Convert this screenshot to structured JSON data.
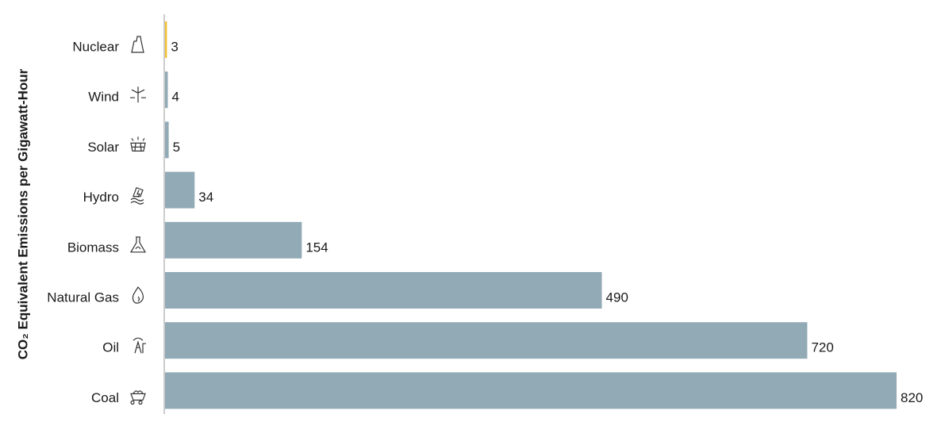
{
  "chart_data": {
    "type": "hbar",
    "y_label": "CO₂ Equivalent Emissions per Gigawatt-Hour",
    "categories": [
      "Nuclear",
      "Wind",
      "Solar",
      "Hydro",
      "Biomass",
      "Natural Gas",
      "Oil",
      "Coal"
    ],
    "values": [
      3,
      4,
      5,
      34,
      154,
      490,
      720,
      820
    ],
    "colors": [
      "#f2c12e",
      "#91aab6",
      "#91aab6",
      "#91aab6",
      "#91aab6",
      "#91aab6",
      "#91aab6",
      "#91aab6"
    ]
  }
}
